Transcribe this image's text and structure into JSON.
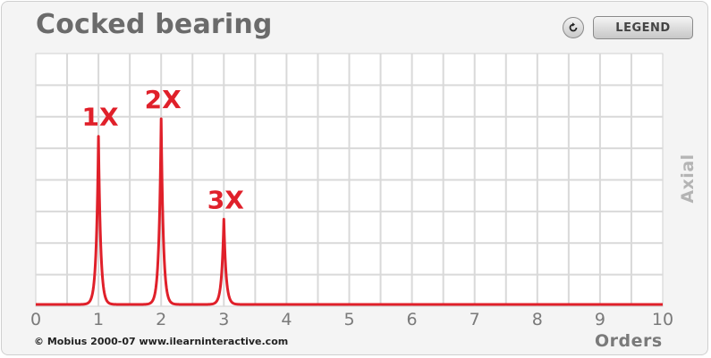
{
  "header": {
    "title": "Cocked bearing",
    "legend_label": "LEGEND",
    "reset_icon": "reset-icon"
  },
  "footer": {
    "copyright": "© Mobius 2000-07 www.ilearninteractive.com"
  },
  "colors": {
    "trace": "#e0202a",
    "grid": "#d9d9d9",
    "plot_bg": "#ffffff",
    "peak_label": "#e0202a"
  },
  "chart_data": {
    "type": "line",
    "title": "Cocked bearing",
    "xlabel": "Orders",
    "ylabel": "Axial",
    "xlim": [
      0,
      10
    ],
    "ylim": [
      0,
      1
    ],
    "x_ticks": [
      "0",
      "1",
      "2",
      "3",
      "4",
      "5",
      "6",
      "7",
      "8",
      "9",
      "10"
    ],
    "grid": true,
    "peaks": [
      {
        "x": 1,
        "y": 0.67,
        "label": "1X"
      },
      {
        "x": 2,
        "y": 0.74,
        "label": "2X"
      },
      {
        "x": 3,
        "y": 0.34,
        "label": "3X"
      }
    ]
  }
}
